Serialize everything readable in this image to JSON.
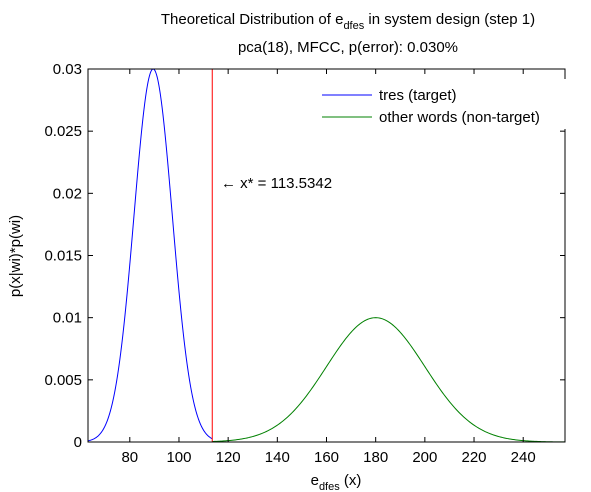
{
  "chart_data": {
    "type": "line",
    "title": {
      "prefix": "Theoretical Distribution of e",
      "subscript": "dfes",
      "suffix": " in system design (step 1)"
    },
    "subtitle": "pca(18), MFCC, p(error): 0.030%",
    "xlabel": {
      "base": "e",
      "subscript": "dfes",
      "suffix": " (x)"
    },
    "ylabel": "p(x|wi)*p(wi)",
    "xlim": [
      63,
      257
    ],
    "ylim": [
      0,
      0.03
    ],
    "xticks": [
      80,
      100,
      120,
      140,
      160,
      180,
      200,
      220,
      240
    ],
    "yticks": [
      0,
      0.005,
      0.01,
      0.015,
      0.02,
      0.025,
      0.03
    ],
    "ytick_labels": [
      "0",
      "0.005",
      "0.01",
      "0.015",
      "0.02",
      "0.025",
      "0.03"
    ],
    "grid": false,
    "legend_position": "top-right",
    "series": [
      {
        "name": "tres (target)",
        "color": "#0000ff",
        "distribution": "gaussian",
        "mean": 89.5,
        "std": 7.8,
        "peak": 0.03,
        "x_range": [
          63,
          113.5342
        ]
      },
      {
        "name": "other words (non-target)",
        "color": "#008000",
        "distribution": "gaussian",
        "mean": 180,
        "std": 20,
        "peak": 0.01,
        "x_range": [
          113.5342,
          257
        ]
      }
    ],
    "threshold": {
      "x": 113.5342,
      "color": "#ff0000",
      "label": "← x* = 113.5342"
    }
  }
}
